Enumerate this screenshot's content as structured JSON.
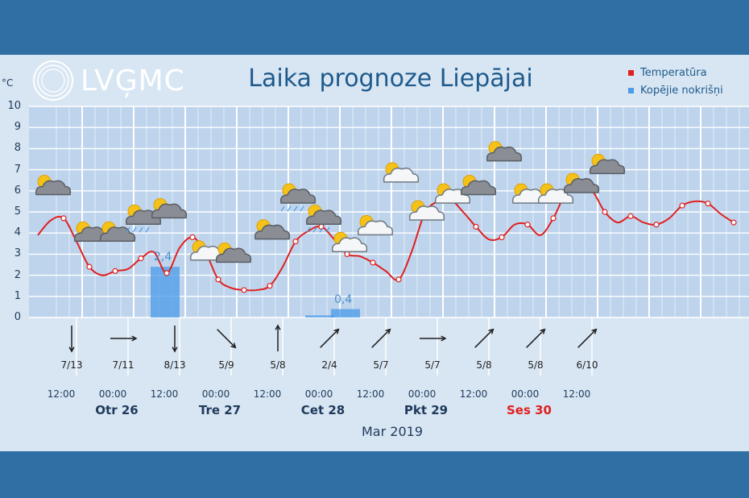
{
  "header": {
    "logo_text": "LVĢMC",
    "title": "Laika prognoze Liepājai",
    "unit": "°C"
  },
  "legend": [
    {
      "label": "Temperatūra",
      "color": "#e02020"
    },
    {
      "label": "Kopējie nokrišņi",
      "color": "#4a9be8"
    }
  ],
  "chart_data": {
    "type": "line",
    "title": "Laika prognoze Liepājai",
    "ylabel": "°C",
    "ylim": [
      0,
      10
    ],
    "yticks": [
      "0",
      "1",
      "2",
      "3",
      "4",
      "5",
      "6",
      "7",
      "8",
      "9",
      "10"
    ],
    "grid": true,
    "x_label": "Mar 2019",
    "x_ticks": [
      "12:00",
      "00:00",
      "12:00",
      "00:00",
      "12:00",
      "00:00",
      "12:00",
      "00:00",
      "12:00",
      "00:00",
      "12:00"
    ],
    "days": [
      {
        "label": "Otr 26",
        "weekend": false
      },
      {
        "label": "Tre 27",
        "weekend": false
      },
      {
        "label": "Cet 28",
        "weekend": false
      },
      {
        "label": "Pkt 29",
        "weekend": false
      },
      {
        "label": "Ses 30",
        "weekend": true
      }
    ],
    "series": [
      {
        "name": "Temperatūra",
        "color": "#e02020",
        "points": [
          [
            0,
            3.9
          ],
          [
            1,
            4.6
          ],
          [
            2,
            4.7
          ],
          [
            3,
            3.6
          ],
          [
            4,
            2.4
          ],
          [
            5,
            2.0
          ],
          [
            6,
            2.2
          ],
          [
            7,
            2.3
          ],
          [
            8,
            2.8
          ],
          [
            9,
            3.1
          ],
          [
            10,
            2.1
          ],
          [
            11,
            3.3
          ],
          [
            12,
            3.8
          ],
          [
            13,
            3.1
          ],
          [
            14,
            1.8
          ],
          [
            15,
            1.4
          ],
          [
            16,
            1.3
          ],
          [
            17,
            1.3
          ],
          [
            18,
            1.5
          ],
          [
            19,
            2.4
          ],
          [
            20,
            3.6
          ],
          [
            21,
            4.1
          ],
          [
            22,
            4.3
          ],
          [
            23,
            3.7
          ],
          [
            24,
            3.0
          ],
          [
            25,
            2.9
          ],
          [
            26,
            2.6
          ],
          [
            27,
            2.2
          ],
          [
            28,
            1.8
          ],
          [
            29,
            3.1
          ],
          [
            30,
            4.9
          ],
          [
            31,
            5.5
          ],
          [
            32,
            5.6
          ],
          [
            33,
            5.0
          ],
          [
            34,
            4.3
          ],
          [
            35,
            3.7
          ],
          [
            36,
            3.8
          ],
          [
            37,
            4.4
          ],
          [
            38,
            4.4
          ],
          [
            39,
            3.9
          ],
          [
            40,
            4.7
          ],
          [
            41,
            5.9
          ],
          [
            42,
            6.1
          ],
          [
            43,
            6.0
          ],
          [
            44,
            5.0
          ],
          [
            45,
            4.5
          ],
          [
            46,
            4.8
          ],
          [
            47,
            4.5
          ],
          [
            48,
            4.4
          ],
          [
            49,
            4.7
          ],
          [
            50,
            5.3
          ],
          [
            51,
            5.5
          ],
          [
            52,
            5.4
          ],
          [
            53,
            4.9
          ],
          [
            54,
            4.5
          ]
        ]
      },
      {
        "name": "Kopējie nokrišņi",
        "color": "#4a9be8",
        "bars": [
          {
            "x": 9,
            "value": 2.4,
            "label": "2,4"
          },
          {
            "x": 21,
            "value": 0.1,
            "label": ""
          },
          {
            "x": 23,
            "value": 0.4,
            "label": "0,4"
          }
        ]
      }
    ],
    "weather_icons": [
      {
        "x": 1,
        "temp": 6.2,
        "type": "partly-cloudy-dark"
      },
      {
        "x": 4,
        "temp": 4.0,
        "type": "partly-cloudy-dark"
      },
      {
        "x": 6,
        "temp": 4.0,
        "type": "partly-cloudy-dark"
      },
      {
        "x": 8,
        "temp": 4.8,
        "type": "partly-cloudy-rain"
      },
      {
        "x": 10,
        "temp": 5.1,
        "type": "partly-cloudy-dark"
      },
      {
        "x": 13,
        "temp": 3.1,
        "type": "partly-cloudy-light"
      },
      {
        "x": 15,
        "temp": 3.0,
        "type": "partly-cloudy-dark"
      },
      {
        "x": 18,
        "temp": 4.1,
        "type": "partly-cloudy-dark"
      },
      {
        "x": 20,
        "temp": 5.8,
        "type": "partly-cloudy-rain"
      },
      {
        "x": 22,
        "temp": 4.8,
        "type": "partly-cloudy-rain"
      },
      {
        "x": 24,
        "temp": 3.5,
        "type": "partly-cloudy-light"
      },
      {
        "x": 26,
        "temp": 4.3,
        "type": "partly-cloudy-light"
      },
      {
        "x": 28,
        "temp": 6.8,
        "type": "partly-cloudy-light"
      },
      {
        "x": 30,
        "temp": 5.0,
        "type": "partly-cloudy-light"
      },
      {
        "x": 32,
        "temp": 5.8,
        "type": "partly-cloudy-light"
      },
      {
        "x": 34,
        "temp": 6.2,
        "type": "partly-cloudy-dark"
      },
      {
        "x": 36,
        "temp": 7.8,
        "type": "partly-cloudy-dark"
      },
      {
        "x": 38,
        "temp": 5.8,
        "type": "partly-cloudy-light"
      },
      {
        "x": 40,
        "temp": 5.8,
        "type": "partly-cloudy-light"
      },
      {
        "x": 42,
        "temp": 6.3,
        "type": "partly-cloudy-dark"
      },
      {
        "x": 44,
        "temp": 7.2,
        "type": "partly-cloudy-dark"
      }
    ],
    "wind": [
      {
        "x": 2,
        "label": "7/13",
        "dir": "N"
      },
      {
        "x": 6,
        "label": "7/11",
        "dir": "W"
      },
      {
        "x": 10,
        "label": "8/13",
        "dir": "N"
      },
      {
        "x": 14,
        "label": "5/9",
        "dir": "NW"
      },
      {
        "x": 18,
        "label": "5/8",
        "dir": "S"
      },
      {
        "x": 22,
        "label": "2/4",
        "dir": "SW"
      },
      {
        "x": 26,
        "label": "5/7",
        "dir": "SW"
      },
      {
        "x": 30,
        "label": "5/7",
        "dir": "W"
      },
      {
        "x": 34,
        "label": "5/8",
        "dir": "SW"
      },
      {
        "x": 38,
        "label": "5/8",
        "dir": "SW"
      },
      {
        "x": 42,
        "label": "6/10",
        "dir": "SW"
      }
    ]
  }
}
